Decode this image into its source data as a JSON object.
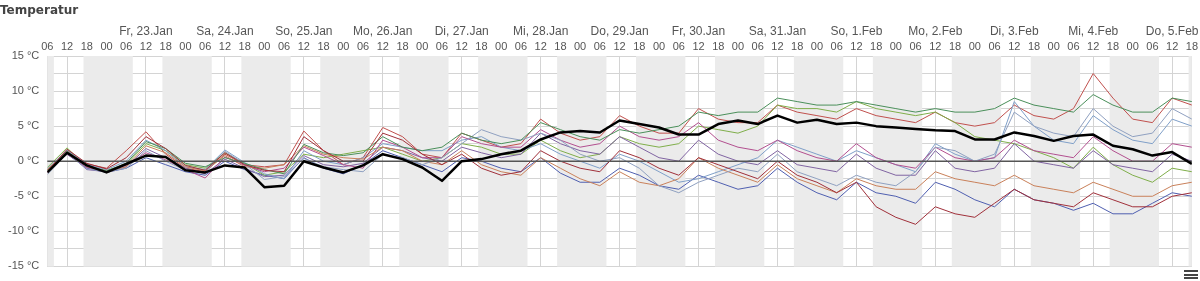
{
  "chart_data": {
    "type": "line",
    "title": "Temperatur",
    "x": [
      "--01-22T06:00",
      "--01-22T12:00",
      "--01-22T18:00",
      "--01-23T00:00",
      "--01-23T06:00",
      "--01-23T12:00",
      "--01-23T18:00",
      "--01-24T00:00",
      "--01-24T06:00",
      "--01-24T12:00",
      "--01-24T18:00",
      "--01-25T00:00",
      "--01-25T06:00",
      "--01-25T12:00",
      "--01-25T18:00",
      "--01-26T00:00",
      "--01-26T06:00",
      "--01-26T12:00",
      "--01-26T18:00",
      "--01-27T00:00",
      "--01-27T06:00",
      "--01-27T12:00",
      "--01-27T18:00",
      "--01-28T00:00",
      "--01-28T06:00",
      "--01-28T12:00",
      "--01-28T18:00",
      "--01-29T00:00",
      "--01-29T06:00",
      "--01-29T12:00",
      "--01-29T18:00",
      "--01-30T00:00",
      "--01-30T06:00",
      "--01-30T12:00",
      "--01-30T18:00",
      "--01-31T00:00",
      "--01-31T06:00",
      "--01-31T12:00",
      "--01-31T18:00",
      "--02-01T00:00",
      "--02-01T06:00",
      "--02-01T12:00",
      "--02-01T18:00",
      "--02-02T00:00",
      "--02-02T06:00",
      "--02-02T12:00",
      "--02-02T18:00",
      "--02-03T00:00",
      "--02-03T06:00",
      "--02-03T12:00",
      "--02-03T18:00",
      "--02-04T00:00",
      "--02-04T06:00",
      "--02-04T12:00",
      "--02-04T18:00",
      "--02-05T00:00",
      "--02-05T06:00",
      "--02-05T12:00",
      "--02-05T18:00"
    ],
    "series": [
      {
        "color": "#000000",
        "values": [
          -1.6,
          1.2,
          -0.6,
          -1.6,
          -0.4,
          0.8,
          0.6,
          -1.3,
          -1.6,
          -0.6,
          -0.9,
          -3.7,
          -3.5,
          0.0,
          -0.9,
          -1.6,
          -0.6,
          1.0,
          0.3,
          -0.9,
          -2.8,
          0.0,
          0.3,
          1.0,
          1.5,
          3.1,
          4.1,
          4.3,
          4.1,
          5.8,
          5.3,
          4.8,
          3.8,
          3.8,
          5.3,
          5.8,
          5.3,
          6.5,
          5.5,
          5.9,
          5.3,
          5.5,
          5.0,
          4.8,
          4.6,
          4.4,
          4.3,
          3.1,
          3.1,
          4.1,
          3.6,
          2.9,
          3.6,
          3.8,
          2.2,
          1.7,
          0.8,
          1.3,
          -0.4
        ]
      },
      {
        "color": "#c0504d",
        "values": [
          -1.2,
          1.5,
          -0.4,
          -1.0,
          1.5,
          4.2,
          1.0,
          -1.0,
          -1.5,
          1.0,
          -0.5,
          -0.8,
          -0.5,
          4.3,
          1.5,
          -0.5,
          0.5,
          4.8,
          3.5,
          1.0,
          0.5,
          4.0,
          3.0,
          2.0,
          2.5,
          6.0,
          4.0,
          3.0,
          3.5,
          6.5,
          5.0,
          4.0,
          4.0,
          7.5,
          6.0,
          5.5,
          5.5,
          8.0,
          7.0,
          6.5,
          6.0,
          7.5,
          6.5,
          6.0,
          5.5,
          7.0,
          5.5,
          5.0,
          5.5,
          8.0,
          6.5,
          6.0,
          7.5,
          12.5,
          9.0,
          6.0,
          5.5,
          9.0,
          8.0
        ]
      },
      {
        "color": "#4f5fb0",
        "values": [
          -1.5,
          1.0,
          -1.0,
          -1.6,
          -1.0,
          0.5,
          -0.5,
          -1.5,
          -2.0,
          0.0,
          -1.2,
          -2.0,
          -2.5,
          0.5,
          -1.0,
          -1.8,
          -0.5,
          1.5,
          0.5,
          -0.5,
          -1.5,
          0.5,
          0.0,
          -1.0,
          -1.5,
          0.5,
          -1.7,
          -3.0,
          -3.0,
          -1.0,
          -2.0,
          -3.5,
          -4.0,
          -2.0,
          -3.0,
          -4.0,
          -3.5,
          -1.0,
          -3.0,
          -4.5,
          -5.5,
          -3.0,
          -4.5,
          -5.0,
          -6.0,
          -3.0,
          -4.0,
          -5.5,
          -6.5,
          -4.0,
          -5.5,
          -6.0,
          -7.0,
          -6.0,
          -7.5,
          -7.5,
          -6.0,
          -4.5,
          -5.0
        ]
      },
      {
        "color": "#7fae4a",
        "values": [
          -0.9,
          1.9,
          -0.8,
          -1.3,
          -0.5,
          2.5,
          1.5,
          -0.5,
          -1.0,
          1.2,
          -0.3,
          -2.0,
          -1.5,
          1.0,
          0.5,
          1.0,
          1.5,
          2.0,
          1.0,
          0.0,
          0.5,
          2.5,
          2.0,
          1.0,
          1.0,
          3.0,
          1.5,
          0.5,
          1.0,
          3.5,
          2.5,
          2.0,
          2.5,
          5.0,
          4.5,
          4.0,
          5.0,
          8.0,
          7.5,
          7.5,
          7.0,
          8.5,
          7.5,
          7.0,
          6.5,
          7.0,
          5.5,
          3.5,
          3.0,
          2.5,
          1.5,
          0.5,
          -1.0,
          2.0,
          -0.5,
          -2.0,
          -3.0,
          -1.0,
          -1.5
        ]
      },
      {
        "color": "#8064a2",
        "values": [
          -1.5,
          1.3,
          -1.2,
          -1.5,
          -0.8,
          1.8,
          0.5,
          -1.0,
          -1.8,
          0.3,
          -1.0,
          -2.2,
          -2.0,
          0.8,
          -0.5,
          -0.8,
          -0.3,
          2.0,
          1.5,
          0.5,
          0.0,
          2.0,
          1.2,
          0.5,
          1.0,
          4.0,
          2.5,
          1.5,
          1.0,
          3.5,
          2.0,
          0.5,
          0.0,
          3.0,
          1.0,
          0.0,
          -0.5,
          1.5,
          -0.5,
          -1.0,
          -1.5,
          1.0,
          -1.0,
          -2.0,
          -2.0,
          1.5,
          -1.0,
          -1.5,
          -1.0,
          2.5,
          0.0,
          -0.5,
          -1.0,
          1.5,
          -0.5,
          -1.0,
          -1.5,
          1.0,
          0.0
        ]
      },
      {
        "color": "#7f9fc8",
        "values": [
          -1.1,
          1.6,
          -0.5,
          -1.2,
          0.0,
          3.0,
          1.5,
          -0.8,
          -1.2,
          1.6,
          -0.2,
          -1.8,
          -2.5,
          1.5,
          0.0,
          -0.5,
          0.5,
          2.5,
          2.0,
          1.5,
          1.5,
          3.0,
          3.5,
          2.0,
          1.5,
          2.5,
          1.0,
          0.0,
          -1.0,
          1.0,
          0.0,
          -1.5,
          -3.0,
          -2.5,
          -1.5,
          -0.5,
          0.5,
          3.0,
          2.0,
          1.0,
          0.0,
          1.5,
          0.5,
          -0.5,
          -1.5,
          2.5,
          1.0,
          0.0,
          0.5,
          8.5,
          5.0,
          3.0,
          2.5,
          6.5,
          4.5,
          3.0,
          2.5,
          6.0,
          5.0
        ]
      },
      {
        "color": "#b24f8f",
        "values": [
          -1.6,
          1.0,
          -0.9,
          -1.4,
          -0.6,
          1.2,
          0.2,
          -1.2,
          -2.4,
          0.6,
          -0.6,
          -1.5,
          -1.0,
          2.0,
          0.8,
          -0.5,
          -1.0,
          3.0,
          2.0,
          0.5,
          0.5,
          3.5,
          2.5,
          2.0,
          2.0,
          4.5,
          3.0,
          2.0,
          2.5,
          5.0,
          3.5,
          3.0,
          3.5,
          5.5,
          3.0,
          2.0,
          1.5,
          3.0,
          1.5,
          0.5,
          0.0,
          2.5,
          0.5,
          -0.5,
          -1.0,
          2.0,
          0.5,
          0.0,
          0.5,
          3.0,
          1.5,
          1.0,
          0.5,
          3.5,
          1.5,
          0.0,
          0.0,
          2.5,
          2.0
        ]
      },
      {
        "color": "#c9805a",
        "values": [
          -1.2,
          1.3,
          -0.7,
          -1.6,
          -0.8,
          2.2,
          1.2,
          -0.8,
          -1.4,
          0.8,
          -0.8,
          -1.0,
          -0.5,
          2.2,
          1.0,
          0.5,
          0.3,
          2.0,
          1.5,
          0.0,
          -0.5,
          1.5,
          -0.5,
          -1.5,
          -2.0,
          0.5,
          -1.0,
          -2.5,
          -3.5,
          -1.5,
          -3.0,
          -3.5,
          -2.5,
          0.5,
          -1.0,
          -2.0,
          -3.0,
          -0.5,
          -2.5,
          -3.5,
          -4.5,
          -2.5,
          -3.5,
          -4.0,
          -4.0,
          -1.5,
          -2.5,
          -3.0,
          -3.5,
          -2.0,
          -3.5,
          -4.0,
          -4.5,
          -3.0,
          -4.0,
          -5.0,
          -5.0,
          -3.5,
          -3.0
        ]
      },
      {
        "color": "#8fa0c0",
        "values": [
          -1.9,
          1.1,
          -1.1,
          -1.5,
          -1.0,
          1.5,
          0.0,
          -1.3,
          -1.6,
          1.4,
          -0.4,
          -2.6,
          -2.2,
          0.4,
          -0.8,
          -1.2,
          -1.5,
          1.0,
          0.5,
          -0.5,
          0.5,
          2.5,
          4.5,
          3.5,
          3.0,
          4.0,
          3.0,
          1.0,
          0.0,
          0.5,
          -1.0,
          -3.5,
          -4.5,
          -3.0,
          -2.0,
          -1.0,
          -1.5,
          1.0,
          -1.5,
          -2.5,
          -3.5,
          -2.0,
          -3.0,
          -3.5,
          -1.5,
          2.0,
          1.5,
          0.0,
          1.0,
          7.0,
          5.0,
          4.0,
          3.5,
          7.5,
          5.0,
          3.5,
          4.0,
          7.5,
          6.0
        ]
      },
      {
        "color": "#4a8f5a",
        "values": [
          -1.4,
          1.4,
          -0.6,
          -1.4,
          -0.3,
          2.8,
          1.8,
          -0.3,
          -0.8,
          0.5,
          -0.3,
          -1.2,
          -1.8,
          2.4,
          1.2,
          0.8,
          1.2,
          3.5,
          2.0,
          1.5,
          2.0,
          4.0,
          3.0,
          2.5,
          3.0,
          5.5,
          4.5,
          3.5,
          3.0,
          4.5,
          4.0,
          4.5,
          5.0,
          7.0,
          6.5,
          7.0,
          7.0,
          9.0,
          8.5,
          8.0,
          8.0,
          8.5,
          8.0,
          7.5,
          7.0,
          7.5,
          7.0,
          7.0,
          7.5,
          9.0,
          8.0,
          7.5,
          7.0,
          9.5,
          8.0,
          7.0,
          7.0,
          9.0,
          8.5
        ]
      },
      {
        "color": "#a0303a",
        "values": [
          -1.5,
          1.7,
          -0.3,
          -1.1,
          0.5,
          3.5,
          1.8,
          -0.6,
          -1.3,
          1.2,
          -0.5,
          -1.3,
          -1.5,
          3.5,
          1.5,
          0.0,
          0.0,
          4.0,
          3.0,
          1.0,
          -0.5,
          1.0,
          -1.0,
          -2.0,
          -1.5,
          1.5,
          0.0,
          -1.0,
          -1.5,
          1.5,
          0.5,
          -1.0,
          -2.0,
          0.5,
          -0.5,
          -1.5,
          -2.5,
          0.0,
          -2.0,
          -3.0,
          -4.5,
          -3.0,
          -6.5,
          -8.0,
          -9.0,
          -6.5,
          -7.5,
          -8.0,
          -6.0,
          -4.0,
          -5.5,
          -6.0,
          -6.5,
          -4.5,
          -5.5,
          -6.5,
          -6.5,
          -5.0,
          -4.5
        ]
      }
    ],
    "xlim": [
      "--01-22T06:00",
      "--02-05T18:00"
    ],
    "xticks": [
      {
        "value": "--01-22T06:00",
        "label": "06"
      },
      {
        "value": "--01-22T12:00",
        "label": "12"
      },
      {
        "value": "--01-22T18:00",
        "label": "18"
      },
      {
        "value": "--01-23T00:00",
        "label": "00"
      },
      {
        "value": "--01-23T06:00",
        "label": "06"
      },
      {
        "value": "--01-23T12:00",
        "label": "12"
      },
      {
        "value": "--01-23T18:00",
        "label": "18"
      },
      {
        "value": "--01-24T00:00",
        "label": "00"
      },
      {
        "value": "--01-24T06:00",
        "label": "06"
      },
      {
        "value": "--01-24T12:00",
        "label": "12"
      },
      {
        "value": "--01-24T18:00",
        "label": "18"
      },
      {
        "value": "--01-25T00:00",
        "label": "00"
      },
      {
        "value": "--01-25T06:00",
        "label": "06"
      },
      {
        "value": "--01-25T12:00",
        "label": "12"
      },
      {
        "value": "--01-25T18:00",
        "label": "18"
      },
      {
        "value": "--01-26T00:00",
        "label": "00"
      },
      {
        "value": "--01-26T06:00",
        "label": "06"
      },
      {
        "value": "--01-26T12:00",
        "label": "12"
      },
      {
        "value": "--01-26T18:00",
        "label": "18"
      },
      {
        "value": "--01-27T00:00",
        "label": "00"
      },
      {
        "value": "--01-27T06:00",
        "label": "06"
      },
      {
        "value": "--01-27T12:00",
        "label": "12"
      },
      {
        "value": "--01-27T18:00",
        "label": "18"
      },
      {
        "value": "--01-28T00:00",
        "label": "00"
      },
      {
        "value": "--01-28T06:00",
        "label": "06"
      },
      {
        "value": "--01-28T12:00",
        "label": "12"
      },
      {
        "value": "--01-28T18:00",
        "label": "18"
      },
      {
        "value": "--01-29T00:00",
        "label": "00"
      },
      {
        "value": "--01-29T06:00",
        "label": "06"
      },
      {
        "value": "--01-29T12:00",
        "label": "12"
      },
      {
        "value": "--01-29T18:00",
        "label": "18"
      },
      {
        "value": "--01-30T00:00",
        "label": "00"
      },
      {
        "value": "--01-30T06:00",
        "label": "06"
      },
      {
        "value": "--01-30T12:00",
        "label": "12"
      },
      {
        "value": "--01-30T18:00",
        "label": "18"
      },
      {
        "value": "--01-31T00:00",
        "label": "00"
      },
      {
        "value": "--01-31T06:00",
        "label": "06"
      },
      {
        "value": "--01-31T12:00",
        "label": "12"
      },
      {
        "value": "--01-31T18:00",
        "label": "18"
      },
      {
        "value": "--02-01T00:00",
        "label": "00"
      },
      {
        "value": "--02-01T06:00",
        "label": "06"
      },
      {
        "value": "--02-01T12:00",
        "label": "12"
      },
      {
        "value": "--02-01T18:00",
        "label": "18"
      },
      {
        "value": "--02-02T00:00",
        "label": "00"
      },
      {
        "value": "--02-02T06:00",
        "label": "06"
      },
      {
        "value": "--02-02T12:00",
        "label": "12"
      },
      {
        "value": "--02-02T18:00",
        "label": "18"
      },
      {
        "value": "--02-03T00:00",
        "label": "00"
      },
      {
        "value": "--02-03T06:00",
        "label": "06"
      },
      {
        "value": "--02-03T12:00",
        "label": "12"
      },
      {
        "value": "--02-03T18:00",
        "label": "18"
      },
      {
        "value": "--02-04T00:00",
        "label": "00"
      },
      {
        "value": "--02-04T06:00",
        "label": "06"
      },
      {
        "value": "--02-04T12:00",
        "label": "12"
      },
      {
        "value": "--02-04T18:00",
        "label": "18"
      },
      {
        "value": "--02-05T00:00",
        "label": "00"
      },
      {
        "value": "--02-05T06:00",
        "label": "06"
      },
      {
        "value": "--02-05T12:00",
        "label": "12"
      },
      {
        "value": "--02-05T18:00",
        "label": "18"
      }
    ],
    "x2lim": [
      "--01-22T06:00",
      "--02-05T18:00"
    ],
    "x2ticks": [
      {
        "value": "--01-23T12:00",
        "label": "Fr, 23.Jan"
      },
      {
        "value": "--01-24T12:00",
        "label": "Sa, 24.Jan"
      },
      {
        "value": "--01-25T12:00",
        "label": "So, 25.Jan"
      },
      {
        "value": "--01-26T12:00",
        "label": "Mo, 26.Jan"
      },
      {
        "value": "--01-27T12:00",
        "label": "Di, 27.Jan"
      },
      {
        "value": "--01-28T12:00",
        "label": "Mi, 28.Jan"
      },
      {
        "value": "--01-29T12:00",
        "label": "Do, 29.Jan"
      },
      {
        "value": "--01-30T12:00",
        "label": "Fr, 30.Jan"
      },
      {
        "value": "--01-31T12:00",
        "label": "Sa, 31.Jan"
      },
      {
        "value": "--02-01T12:00",
        "label": "So, 1.Feb"
      },
      {
        "value": "--02-02T12:00",
        "label": "Mo, 2.Feb"
      },
      {
        "value": "--02-03T12:00",
        "label": "Di, 3.Feb"
      },
      {
        "value": "--02-04T12:00",
        "label": "Mi, 4.Feb"
      },
      {
        "value": "--02-05T12:00",
        "label": "Do, 5.Feb"
      }
    ],
    "ylim": [
      -15,
      15
    ],
    "yticks": [
      {
        "value": -15,
        "label": "-15 °C"
      },
      {
        "value": -12.5,
        "label": null
      },
      {
        "value": -10,
        "label": "-10 °C"
      },
      {
        "value": -7.5,
        "label": null
      },
      {
        "value": -5,
        "label": "-5 °C"
      },
      {
        "value": -2.5,
        "label": null
      },
      {
        "value": 0,
        "label": "0 °C"
      },
      {
        "value": 2.5,
        "label": null
      },
      {
        "value": 5,
        "label": "5 °C"
      },
      {
        "value": 7.5,
        "label": null
      },
      {
        "value": 10,
        "label": "10 °C"
      },
      {
        "value": 12.5,
        "label": null
      },
      {
        "value": 15,
        "label": "15 °C"
      }
    ],
    "ref_lines": [
      {
        "axis": "y",
        "value": 0,
        "color": "#555555"
      }
    ],
    "bands": [
      {
        "axis": "x",
        "from": "--01-22T06:00",
        "to": "--01-22T08:00",
        "color": "#ebebeb"
      },
      {
        "axis": "x",
        "from": "--01-22T17:00",
        "to": "--01-23T08:00",
        "color": "#ebebeb"
      },
      {
        "axis": "x",
        "from": "--01-23T17:00",
        "to": "--01-24T08:00",
        "color": "#ebebeb"
      },
      {
        "axis": "x",
        "from": "--01-24T17:00",
        "to": "--01-25T08:00",
        "color": "#ebebeb"
      },
      {
        "axis": "x",
        "from": "--01-25T17:00",
        "to": "--01-26T08:00",
        "color": "#ebebeb"
      },
      {
        "axis": "x",
        "from": "--01-26T17:00",
        "to": "--01-27T08:00",
        "color": "#ebebeb"
      },
      {
        "axis": "x",
        "from": "--01-27T17:00",
        "to": "--01-28T08:00",
        "color": "#ebebeb"
      },
      {
        "axis": "x",
        "from": "--01-28T17:00",
        "to": "--01-29T08:00",
        "color": "#ebebeb"
      },
      {
        "axis": "x",
        "from": "--01-29T17:00",
        "to": "--01-30T08:00",
        "color": "#ebebeb"
      },
      {
        "axis": "x",
        "from": "--01-30T17:00",
        "to": "--01-31T08:00",
        "color": "#ebebeb"
      },
      {
        "axis": "x",
        "from": "--01-31T17:00",
        "to": "--02-01T08:00",
        "color": "#ebebeb"
      },
      {
        "axis": "x",
        "from": "--02-01T17:00",
        "to": "--02-02T08:00",
        "color": "#ebebeb"
      },
      {
        "axis": "x",
        "from": "--02-02T17:00",
        "to": "--02-03T08:00",
        "color": "#ebebeb"
      },
      {
        "axis": "x",
        "from": "--02-03T17:00",
        "to": "--02-04T08:00",
        "color": "#ebebeb"
      },
      {
        "axis": "x",
        "from": "--02-04T17:00",
        "to": "--02-05T08:00",
        "color": "#ebebeb"
      },
      {
        "axis": "x",
        "from": "--02-05T17:00",
        "to": "--02-05T18:00",
        "color": "#ebebeb"
      }
    ],
    "grid": true,
    "legend": false
  }
}
